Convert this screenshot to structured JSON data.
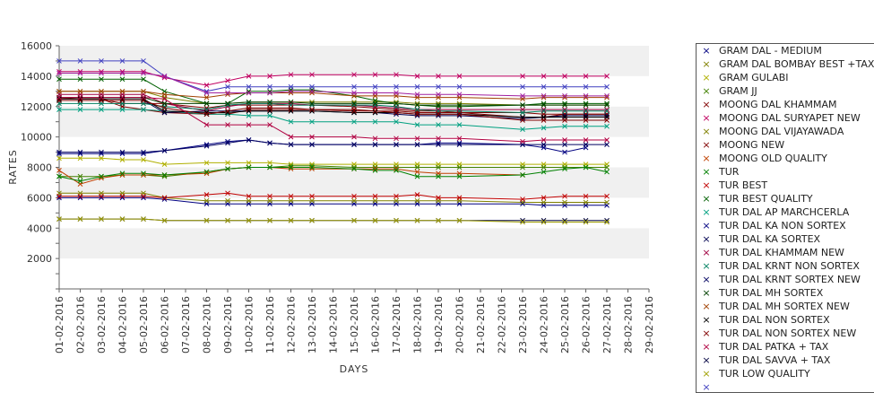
{
  "chart_data": {
    "type": "line",
    "xlabel": "DAYS",
    "ylabel": "RATES",
    "ylim": [
      0,
      16000
    ],
    "yticks": [
      2000,
      4000,
      6000,
      8000,
      10000,
      12000,
      14000,
      16000
    ],
    "grid": "alternating horizontal bands",
    "legend_position": "right",
    "categories": [
      "01-02-2016",
      "02-02-2016",
      "03-02-2016",
      "04-02-2016",
      "05-02-2016",
      "06-02-2016",
      "07-02-2016",
      "08-02-2016",
      "09-02-2016",
      "10-02-2016",
      "11-02-2016",
      "12-02-2016",
      "13-02-2016",
      "14-02-2016",
      "15-02-2016",
      "16-02-2016",
      "17-02-2016",
      "18-02-2016",
      "19-02-2016",
      "20-02-2016",
      "21-02-2016",
      "22-02-2016",
      "23-02-2016",
      "24-02-2016",
      "25-02-2016",
      "26-02-2016",
      "27-02-2016",
      "28-02-2016",
      "29-02-2016"
    ],
    "series": [
      {
        "name": "GRAM DAL - MEDIUM",
        "color": "#000080",
        "values": [
          6000,
          6000,
          6000,
          6000,
          6000,
          5900,
          null,
          5600,
          5600,
          5600,
          5600,
          5600,
          5600,
          null,
          5600,
          5600,
          5600,
          5600,
          5600,
          5600,
          null,
          null,
          5600,
          5500,
          5500,
          5500,
          5500,
          null,
          null
        ]
      },
      {
        "name": "GRAM DAL BOMBAY BEST +TAX",
        "color": "#808000",
        "values": [
          6300,
          6300,
          6300,
          6300,
          6300,
          6000,
          null,
          5800,
          5800,
          5800,
          5800,
          5800,
          5800,
          null,
          5800,
          5800,
          5800,
          5800,
          5800,
          5800,
          null,
          null,
          5700,
          5700,
          5700,
          5700,
          5700,
          null,
          null
        ]
      },
      {
        "name": "GRAM GULABI",
        "color": "#b0b000",
        "values": [
          8600,
          8600,
          8600,
          8500,
          8500,
          8200,
          null,
          8300,
          8300,
          8300,
          8300,
          8200,
          8200,
          null,
          8200,
          8200,
          8200,
          8200,
          8200,
          8200,
          null,
          null,
          8200,
          8200,
          8200,
          8200,
          8200,
          null,
          null
        ]
      },
      {
        "name": "GRAM JJ",
        "color": "#408000",
        "values": [
          7400,
          7400,
          7400,
          7500,
          7500,
          7400,
          null,
          7700,
          7900,
          8000,
          8000,
          8100,
          8100,
          null,
          8000,
          8000,
          8000,
          8000,
          8000,
          8000,
          null,
          null,
          8000,
          8000,
          8000,
          8000,
          8000,
          null,
          null
        ]
      },
      {
        "name": "MOONG DAL KHAMMAM",
        "color": "#800000",
        "values": [
          12600,
          12500,
          12500,
          12200,
          12200,
          12200,
          null,
          11900,
          12100,
          12100,
          12100,
          12100,
          12100,
          null,
          12000,
          11900,
          11800,
          11700,
          11700,
          11600,
          null,
          null,
          11300,
          11300,
          11500,
          11500,
          11500,
          null,
          null
        ]
      },
      {
        "name": "MOONG DAL SURYAPET NEW",
        "color": "#c00060",
        "values": [
          14300,
          14300,
          14300,
          14300,
          14300,
          13900,
          null,
          13400,
          13700,
          14000,
          14000,
          14100,
          14100,
          null,
          14100,
          14100,
          14100,
          14000,
          14000,
          14000,
          null,
          null,
          14000,
          14000,
          14000,
          14000,
          14000,
          null,
          null
        ]
      },
      {
        "name": "MOONG DAL VIJAYAWADA",
        "color": "#808000",
        "values": [
          13000,
          13000,
          13000,
          13000,
          13000,
          12600,
          null,
          12200,
          12200,
          12300,
          12300,
          12300,
          12300,
          null,
          12300,
          12300,
          12300,
          12200,
          12200,
          12200,
          null,
          null,
          12100,
          12100,
          12100,
          12100,
          12100,
          null,
          null
        ]
      },
      {
        "name": "MOONG NEW",
        "color": "#800000",
        "values": [
          12500,
          12500,
          12500,
          12000,
          11800,
          11600,
          null,
          11500,
          11500,
          11800,
          11800,
          11800,
          11800,
          null,
          11800,
          11700,
          11700,
          11600,
          11600,
          11600,
          null,
          null,
          11600,
          11500,
          11500,
          11500,
          11500,
          null,
          null
        ]
      },
      {
        "name": "MOONG OLD QUALITY",
        "color": "#c04000",
        "values": [
          7800,
          6900,
          7300,
          7500,
          7500,
          7500,
          null,
          7600,
          7900,
          8000,
          8000,
          7900,
          7900,
          null,
          7900,
          7900,
          7900,
          7700,
          7600,
          7600,
          null,
          null,
          7500,
          null,
          null,
          null,
          null,
          null,
          null
        ]
      },
      {
        "name": "TUR",
        "color": "#008000",
        "values": [
          7400,
          7100,
          7400,
          7600,
          7600,
          7500,
          null,
          7700,
          7900,
          8000,
          8000,
          8000,
          8000,
          null,
          7900,
          7800,
          7800,
          7400,
          7400,
          7400,
          null,
          null,
          7500,
          7700,
          7900,
          8000,
          7700,
          null,
          null
        ]
      },
      {
        "name": "TUR BEST",
        "color": "#c00000",
        "values": [
          6100,
          6100,
          6100,
          6100,
          6100,
          6000,
          null,
          6200,
          6300,
          6100,
          6100,
          6100,
          6100,
          null,
          6100,
          6100,
          6100,
          6200,
          6000,
          6000,
          null,
          null,
          5900,
          6000,
          6100,
          6100,
          6100,
          null,
          null
        ]
      },
      {
        "name": "TUR BEST QUALITY",
        "color": "#006000",
        "values": [
          13800,
          13800,
          13800,
          13800,
          13800,
          13000,
          null,
          12200,
          12200,
          13000,
          13000,
          13100,
          13100,
          null,
          12700,
          12400,
          12200,
          12100,
          12000,
          12000,
          null,
          null,
          12100,
          12200,
          12200,
          12200,
          12200,
          null,
          null
        ]
      },
      {
        "name": "TUR DAL AP MARCHCERLA",
        "color": "#00a080",
        "values": [
          11800,
          11800,
          11800,
          11800,
          11800,
          11700,
          null,
          11500,
          11500,
          11400,
          11400,
          11000,
          11000,
          null,
          11000,
          11000,
          11000,
          10800,
          10800,
          10800,
          null,
          null,
          10500,
          10600,
          10700,
          10700,
          10700,
          null,
          null
        ]
      },
      {
        "name": "TUR DAL KA NON SORTEX",
        "color": "#000080",
        "values": [
          8900,
          8900,
          8900,
          8900,
          8900,
          9100,
          null,
          9500,
          9700,
          9800,
          9600,
          9500,
          9500,
          null,
          9500,
          9500,
          9500,
          9500,
          9600,
          9600,
          null,
          null,
          9500,
          9300,
          9000,
          9300,
          null,
          null,
          null
        ]
      },
      {
        "name": "TUR DAL KA SORTEX",
        "color": "#000050",
        "values": [
          12400,
          12400,
          12400,
          12400,
          12400,
          11600,
          null,
          11700,
          11700,
          11700,
          11700,
          11700,
          11700,
          null,
          11600,
          11600,
          11500,
          11400,
          11400,
          11400,
          null,
          null,
          11200,
          11300,
          11400,
          11400,
          11400,
          null,
          null
        ]
      },
      {
        "name": "TUR DAL KHAMMAM NEW",
        "color": "#a00040",
        "values": [
          12800,
          12800,
          12800,
          12800,
          12800,
          12200,
          null,
          11700,
          12000,
          12200,
          12200,
          12200,
          12100,
          null,
          12100,
          12000,
          11900,
          11800,
          11800,
          11800,
          null,
          null,
          11800,
          11800,
          11800,
          11800,
          11800,
          null,
          null
        ]
      },
      {
        "name": "TUR DAL KRNT NON SORTEX",
        "color": "#008060",
        "values": [
          12200,
          12200,
          12200,
          12200,
          12200,
          12000,
          null,
          11800,
          12100,
          12200,
          12200,
          12100,
          12100,
          null,
          12100,
          12100,
          12000,
          11800,
          11700,
          11700,
          null,
          null,
          11600,
          11700,
          11700,
          11700,
          11700,
          null,
          null
        ]
      },
      {
        "name": "TUR DAL KRNT SORTEX NEW",
        "color": "#000060",
        "values": [
          9000,
          9000,
          9000,
          9000,
          9000,
          9100,
          null,
          9400,
          9600,
          9800,
          9600,
          9500,
          9500,
          null,
          9500,
          9500,
          9500,
          9500,
          9500,
          9500,
          null,
          null,
          9500,
          9500,
          9500,
          9500,
          9500,
          null,
          null
        ]
      },
      {
        "name": "TUR DAL MH SORTEX",
        "color": "#004000",
        "values": [
          12600,
          12600,
          12600,
          12600,
          12600,
          12200,
          null,
          12200,
          12200,
          12300,
          12300,
          12300,
          12200,
          null,
          12200,
          12200,
          12200,
          12100,
          12100,
          12100,
          null,
          null,
          12100,
          12100,
          12100,
          12100,
          12100,
          null,
          null
        ]
      },
      {
        "name": "TUR DAL MH SORTEX NEW",
        "color": "#a04000",
        "values": [
          13000,
          13000,
          13000,
          13000,
          13000,
          12800,
          null,
          12600,
          12800,
          12900,
          12900,
          12900,
          12900,
          null,
          12700,
          12700,
          12700,
          12600,
          12600,
          12600,
          null,
          null,
          12500,
          12600,
          12600,
          12600,
          12600,
          null,
          null
        ]
      },
      {
        "name": "TUR DAL NON SORTEX",
        "color": "#000000",
        "values": [
          12500,
          12500,
          12500,
          12500,
          12500,
          11700,
          null,
          11600,
          11600,
          11700,
          11700,
          11700,
          11700,
          null,
          11600,
          11600,
          11600,
          11500,
          11500,
          11500,
          null,
          null,
          11300,
          11300,
          11300,
          11300,
          11300,
          null,
          null
        ]
      },
      {
        "name": "TUR DAL NON SORTEX NEW",
        "color": "#800000",
        "values": [
          12400,
          12400,
          12400,
          12400,
          12400,
          11900,
          null,
          11500,
          11700,
          11900,
          11900,
          11900,
          11800,
          null,
          11700,
          11700,
          11600,
          11500,
          11500,
          11500,
          null,
          null,
          11100,
          11100,
          11100,
          11100,
          11100,
          null,
          null
        ]
      },
      {
        "name": "TUR DAL PATKA + TAX",
        "color": "#b00040",
        "values": [
          12600,
          12600,
          12600,
          12600,
          12600,
          12500,
          null,
          10800,
          10800,
          10800,
          10800,
          10000,
          10000,
          null,
          10000,
          9900,
          9900,
          9900,
          9900,
          9900,
          null,
          null,
          9700,
          9800,
          9800,
          9800,
          9800,
          null,
          null
        ]
      },
      {
        "name": "TUR DAL SAVVA + TAX",
        "color": "#000040",
        "values": [
          4600,
          4600,
          4600,
          4600,
          4600,
          4500,
          null,
          4500,
          4500,
          4500,
          4500,
          4500,
          4500,
          null,
          4500,
          4500,
          4500,
          4500,
          4500,
          4500,
          null,
          null,
          4500,
          4500,
          4500,
          4500,
          4500,
          null,
          null
        ]
      },
      {
        "name": "TUR LOW QUALITY",
        "color": "#a0a000",
        "values": [
          4600,
          4600,
          4600,
          4600,
          4600,
          4500,
          null,
          4500,
          4500,
          4500,
          4500,
          4500,
          4500,
          null,
          4500,
          4500,
          4500,
          4500,
          4500,
          4500,
          null,
          null,
          4400,
          4400,
          4400,
          4400,
          4400,
          null,
          null
        ]
      },
      {
        "name": "",
        "color": "#4040c0",
        "values": [
          15000,
          15000,
          15000,
          15000,
          15000,
          14000,
          null,
          13000,
          13300,
          13300,
          13300,
          13300,
          13300,
          null,
          13300,
          13300,
          13300,
          13300,
          13300,
          13300,
          null,
          null,
          13300,
          13300,
          13300,
          13300,
          13300,
          null,
          null
        ]
      },
      {
        "name": "",
        "color": "#a020a0",
        "values": [
          14200,
          14200,
          14200,
          14200,
          14200,
          14000,
          null,
          12900,
          12900,
          12900,
          12900,
          13000,
          13000,
          null,
          12900,
          12900,
          12900,
          12800,
          12800,
          12800,
          null,
          null,
          12700,
          12700,
          12700,
          12700,
          12700,
          null,
          null
        ]
      }
    ]
  }
}
